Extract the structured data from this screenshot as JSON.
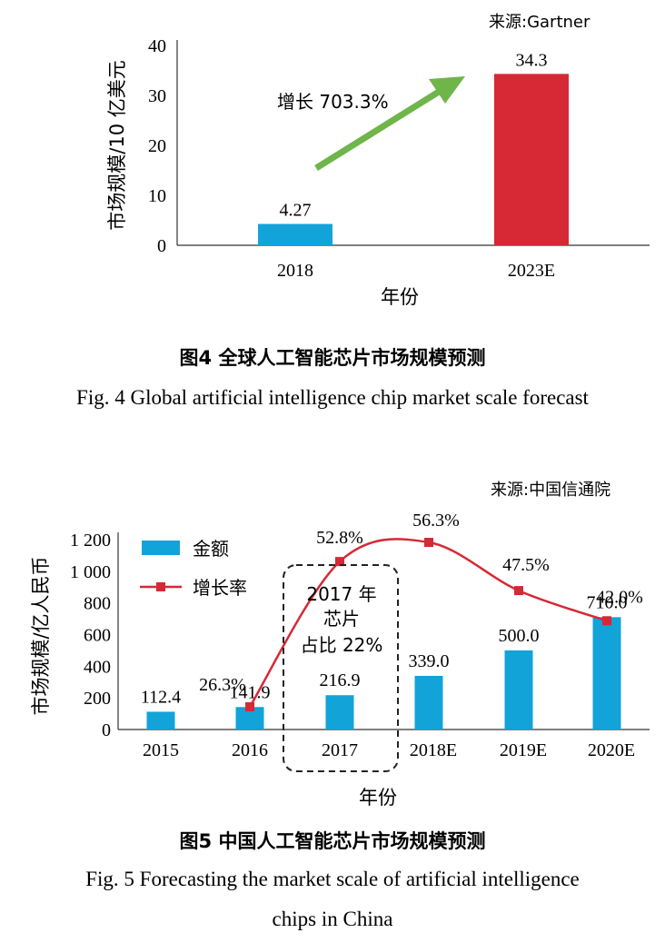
{
  "chart_data": [
    {
      "type": "bar",
      "source": "来源:Gartner",
      "ylabel": "市场规模/10 亿美元",
      "xlabel": "年份",
      "categories": [
        "2018",
        "2023E"
      ],
      "values": [
        4.27,
        34.3
      ],
      "value_labels": [
        "4.27",
        "34.3"
      ],
      "colors": [
        "#12a3d9",
        "#d62835"
      ],
      "ylim": [
        0,
        40
      ],
      "yticks": [
        0,
        10,
        20,
        30,
        40
      ],
      "ytick_labels": [
        "0",
        "10",
        "20",
        "30",
        "40"
      ],
      "annotation": "增长 703.3%",
      "arrow_color": "#6fb54a",
      "caption_cn": "图4 全球人工智能芯片市场规模预测",
      "caption_en": "Fig. 4 Global artificial intelligence chip market scale forecast"
    },
    {
      "type": "bar",
      "source": "来源:中国信通院",
      "ylabel": "市场规模/亿人民币",
      "xlabel": "年份",
      "categories": [
        "2015",
        "2016",
        "2017",
        "2018E",
        "2019E",
        "2020E"
      ],
      "series": [
        {
          "name": "金额",
          "kind": "bar",
          "values": [
            112.4,
            141.9,
            216.9,
            339.0,
            500.0,
            710.0
          ],
          "labels": [
            "112.4",
            "141.9",
            "216.9",
            "339.0",
            "500.0",
            "710.0"
          ],
          "color": "#12a3d9"
        },
        {
          "name": "增长率",
          "kind": "line",
          "values": [
            null,
            26.3,
            52.8,
            56.3,
            47.5,
            42.0
          ],
          "labels": [
            null,
            "26.3%",
            "52.8%",
            "56.3%",
            "47.5%",
            "42.0%"
          ],
          "color": "#d62835"
        }
      ],
      "ylim": [
        0,
        1200
      ],
      "yticks": [
        0,
        200,
        400,
        600,
        800,
        1000,
        1200
      ],
      "ytick_labels": [
        "0",
        "200",
        "400",
        "600",
        "800",
        "1 000",
        "1 200"
      ],
      "annotation_lines": [
        "2017 年",
        "芯片",
        "占比 22%"
      ],
      "caption_cn": "图5 中国人工智能芯片市场规模预测",
      "caption_en_lines": [
        "Fig. 5 Forecasting the market scale of artificial intelligence",
        "chips in China"
      ]
    }
  ]
}
